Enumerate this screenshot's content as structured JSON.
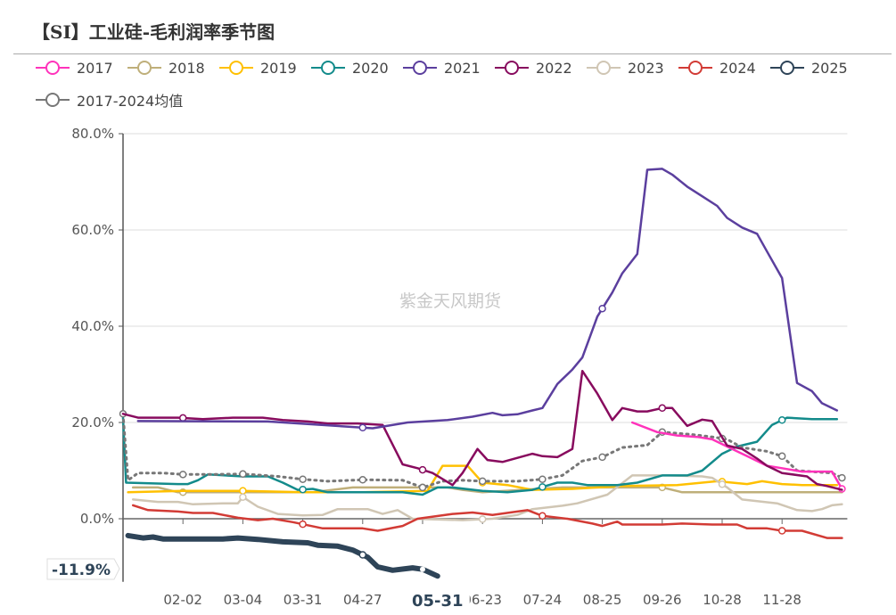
{
  "chart_data": {
    "type": "line",
    "title": "【SI】工业硅-毛利润率季节图",
    "watermark": "紫金天风期货",
    "x_range": [
      0,
      72
    ],
    "x_ticks": [
      {
        "i": 6,
        "label": "02-02"
      },
      {
        "i": 12,
        "label": "03-04"
      },
      {
        "i": 18,
        "label": "03-31"
      },
      {
        "i": 24,
        "label": "04-27"
      },
      {
        "i": 36,
        "label": "06-23"
      },
      {
        "i": 42,
        "label": "07-24"
      },
      {
        "i": 48,
        "label": "08-25"
      },
      {
        "i": 54,
        "label": "09-26"
      },
      {
        "i": 60,
        "label": "10-28"
      },
      {
        "i": 66,
        "label": "11-28"
      }
    ],
    "ylim": [
      -13.1,
      80
    ],
    "y_ticks": [
      {
        "v": 0,
        "label": "0.0%"
      },
      {
        "v": 20,
        "label": "20.0%"
      },
      {
        "v": 40,
        "label": "40.0%"
      },
      {
        "v": 60,
        "label": "60.0%"
      },
      {
        "v": 80,
        "label": "80.0%"
      }
    ],
    "grid": true,
    "legend_placement": "top",
    "pointer": {
      "x_label": "05-31",
      "x_i": 31.5,
      "y_label": "-11.9%",
      "y_value": -11.9
    },
    "series": [
      {
        "name": "2017",
        "color": "#FF33BB",
        "points": [
          [
            51,
            20.0
          ],
          [
            53.5,
            18
          ],
          [
            55.5,
            17.3
          ],
          [
            57.5,
            17
          ],
          [
            59,
            16.5
          ],
          [
            60.5,
            15
          ],
          [
            62.5,
            13
          ],
          [
            64.5,
            11
          ],
          [
            66,
            10.5
          ],
          [
            68,
            9.8
          ],
          [
            71,
            9.8
          ],
          [
            72,
            6.2
          ]
        ]
      },
      {
        "name": "2018",
        "color": "#BFAF7A",
        "points": [
          [
            1,
            6.5
          ],
          [
            3.5,
            6.5
          ],
          [
            5.5,
            5.5
          ],
          [
            19,
            5.5
          ],
          [
            23,
            6.5
          ],
          [
            32.5,
            6.5
          ],
          [
            34,
            6
          ],
          [
            36,
            5.5
          ],
          [
            44,
            6.5
          ],
          [
            48.5,
            6.5
          ],
          [
            54,
            6.5
          ],
          [
            56,
            5.5
          ],
          [
            72,
            5.5
          ]
        ]
      },
      {
        "name": "2019",
        "color": "#FFC000",
        "points": [
          [
            0.5,
            5.5
          ],
          [
            6,
            5.8
          ],
          [
            12,
            5.8
          ],
          [
            18,
            5.5
          ],
          [
            24,
            5.5
          ],
          [
            30.5,
            5.8
          ],
          [
            32,
            11
          ],
          [
            34.5,
            11
          ],
          [
            36,
            7.5
          ],
          [
            38.5,
            7
          ],
          [
            41,
            6
          ],
          [
            45,
            6.2
          ],
          [
            50,
            6.8
          ],
          [
            55.5,
            7
          ],
          [
            59.5,
            7.8
          ],
          [
            62.5,
            7.2
          ],
          [
            64,
            7.8
          ],
          [
            66,
            7.2
          ],
          [
            68,
            7
          ],
          [
            71.5,
            7
          ]
        ]
      },
      {
        "name": "2020",
        "color": "#138B8B",
        "points": [
          [
            0,
            21
          ],
          [
            0.3,
            7.5
          ],
          [
            5.5,
            7.2
          ],
          [
            6.5,
            7.2
          ],
          [
            7.5,
            8
          ],
          [
            8.5,
            9.2
          ],
          [
            12,
            8.8
          ],
          [
            14.5,
            8.8
          ],
          [
            16,
            7.5
          ],
          [
            17.5,
            6
          ],
          [
            19,
            6.2
          ],
          [
            20.5,
            5.5
          ],
          [
            23.5,
            5.5
          ],
          [
            28,
            5.5
          ],
          [
            30,
            5
          ],
          [
            31.5,
            6.5
          ],
          [
            33,
            6.5
          ],
          [
            36,
            5.8
          ],
          [
            38.5,
            5.5
          ],
          [
            41,
            6
          ],
          [
            43.5,
            7.5
          ],
          [
            45,
            7.5
          ],
          [
            46.5,
            7
          ],
          [
            49.5,
            7
          ],
          [
            51.5,
            7.5
          ],
          [
            54,
            9
          ],
          [
            56.5,
            9
          ],
          [
            58,
            10
          ],
          [
            60,
            13.5
          ],
          [
            61.5,
            15
          ],
          [
            63.5,
            16
          ],
          [
            65,
            19.5
          ],
          [
            66.5,
            21
          ],
          [
            69,
            20.7
          ],
          [
            71.5,
            20.7
          ]
        ]
      },
      {
        "name": "2021",
        "color": "#5B3F9E",
        "points": [
          [
            1.5,
            20.3
          ],
          [
            14.5,
            20.2
          ],
          [
            25,
            18.8
          ],
          [
            28.5,
            20
          ],
          [
            32.5,
            20.5
          ],
          [
            35,
            21.2
          ],
          [
            37,
            22
          ],
          [
            38,
            21.5
          ],
          [
            39.5,
            21.7
          ],
          [
            41,
            22.5
          ],
          [
            42,
            23
          ],
          [
            43.5,
            28
          ],
          [
            45,
            31
          ],
          [
            46,
            33.5
          ],
          [
            47.5,
            42
          ],
          [
            49,
            47
          ],
          [
            50,
            51
          ],
          [
            51.5,
            55
          ],
          [
            52.5,
            72.5
          ],
          [
            54,
            72.7
          ],
          [
            55,
            71.5
          ],
          [
            56.5,
            69
          ],
          [
            58,
            67
          ],
          [
            59.5,
            65
          ],
          [
            60.5,
            62.5
          ],
          [
            62,
            60.5
          ],
          [
            63.5,
            59.2
          ],
          [
            64.5,
            55.5
          ],
          [
            66,
            50
          ],
          [
            67.5,
            28.2
          ],
          [
            69,
            26.5
          ],
          [
            70,
            24
          ],
          [
            71.5,
            22.5
          ]
        ]
      },
      {
        "name": "2022",
        "color": "#880B5E",
        "points": [
          [
            0,
            21.8
          ],
          [
            1.5,
            21
          ],
          [
            5.5,
            21
          ],
          [
            8,
            20.7
          ],
          [
            11,
            21
          ],
          [
            14,
            21
          ],
          [
            16,
            20.5
          ],
          [
            18.5,
            20.2
          ],
          [
            20.5,
            19.8
          ],
          [
            23.5,
            19.8
          ],
          [
            26,
            19.5
          ],
          [
            28,
            11.3
          ],
          [
            29.5,
            10.5
          ],
          [
            31,
            9.5
          ],
          [
            33,
            7
          ],
          [
            34,
            9.5
          ],
          [
            35.5,
            14.5
          ],
          [
            36.5,
            12.2
          ],
          [
            38,
            11.8
          ],
          [
            41,
            13.5
          ],
          [
            42,
            13
          ],
          [
            43.5,
            12.8
          ],
          [
            45,
            14.5
          ],
          [
            46,
            30.7
          ],
          [
            47.5,
            26
          ],
          [
            49,
            20.5
          ],
          [
            50,
            23
          ],
          [
            51.5,
            22.3
          ],
          [
            52.5,
            22.3
          ],
          [
            54,
            23
          ],
          [
            55,
            23
          ],
          [
            56.5,
            19.3
          ],
          [
            58,
            20.6
          ],
          [
            59,
            20.3
          ],
          [
            60.5,
            15.2
          ],
          [
            62,
            14.5
          ],
          [
            63.5,
            12.5
          ],
          [
            64.5,
            11
          ],
          [
            66,
            9.5
          ],
          [
            68.5,
            8.8
          ],
          [
            69.5,
            7.2
          ],
          [
            70.5,
            6.8
          ],
          [
            72,
            6
          ]
        ]
      },
      {
        "name": "2023",
        "color": "#D0C6B4",
        "points": [
          [
            1,
            4
          ],
          [
            3.5,
            3.5
          ],
          [
            5.5,
            3.5
          ],
          [
            7,
            3
          ],
          [
            10,
            3.2
          ],
          [
            11.5,
            3.2
          ],
          [
            12,
            4.5
          ],
          [
            13.5,
            2.5
          ],
          [
            15.5,
            1
          ],
          [
            18,
            0.7
          ],
          [
            20,
            0.8
          ],
          [
            21.5,
            2
          ],
          [
            24.5,
            2
          ],
          [
            26,
            1
          ],
          [
            27.5,
            1.8
          ],
          [
            29,
            0
          ],
          [
            34,
            -0.3
          ],
          [
            37,
            0
          ],
          [
            39.5,
            0.8
          ],
          [
            41,
            2
          ],
          [
            44,
            2.7
          ],
          [
            45.5,
            3.2
          ],
          [
            48.5,
            5
          ],
          [
            51,
            9
          ],
          [
            54.5,
            9
          ],
          [
            58,
            8.8
          ],
          [
            59,
            8.5
          ],
          [
            60.5,
            6.5
          ],
          [
            62,
            4
          ],
          [
            65.5,
            3.2
          ],
          [
            67.5,
            1.8
          ],
          [
            69,
            1.6
          ],
          [
            70,
            2
          ],
          [
            71,
            2.8
          ],
          [
            72,
            3
          ]
        ]
      },
      {
        "name": "2024",
        "color": "#D23B35",
        "points": [
          [
            1,
            2.8
          ],
          [
            2.5,
            1.8
          ],
          [
            5.5,
            1.5
          ],
          [
            7,
            1.2
          ],
          [
            9,
            1.2
          ],
          [
            11.5,
            0.2
          ],
          [
            13.5,
            -0.3
          ],
          [
            15,
            0
          ],
          [
            17,
            -0.7
          ],
          [
            20,
            -2
          ],
          [
            23,
            -2
          ],
          [
            24,
            -2
          ],
          [
            25.5,
            -2.5
          ],
          [
            28,
            -1.5
          ],
          [
            29.5,
            0
          ],
          [
            33,
            1
          ],
          [
            35,
            1.3
          ],
          [
            37,
            0.8
          ],
          [
            39.5,
            1.5
          ],
          [
            40.5,
            1.8
          ],
          [
            42,
            0.6
          ],
          [
            44.5,
            0
          ],
          [
            47,
            -1
          ],
          [
            48,
            -1.5
          ],
          [
            49.5,
            -0.6
          ],
          [
            50,
            -1.2
          ],
          [
            54,
            -1.2
          ],
          [
            56,
            -1
          ],
          [
            59,
            -1.2
          ],
          [
            61.5,
            -1.2
          ],
          [
            62.5,
            -2
          ],
          [
            64.5,
            -2
          ],
          [
            66,
            -2.5
          ],
          [
            68,
            -2.5
          ],
          [
            70.5,
            -4
          ],
          [
            72,
            -4
          ]
        ]
      },
      {
        "name": "2025",
        "color": "#2E4458",
        "points": [
          [
            0.5,
            -3.5
          ],
          [
            2,
            -4
          ],
          [
            3,
            -3.8
          ],
          [
            4,
            -4.2
          ],
          [
            10,
            -4.2
          ],
          [
            11.5,
            -4
          ],
          [
            13.5,
            -4.3
          ],
          [
            16,
            -4.8
          ],
          [
            18.5,
            -5
          ],
          [
            19.5,
            -5.5
          ],
          [
            21.5,
            -5.7
          ],
          [
            23,
            -6.5
          ],
          [
            24.5,
            -8
          ],
          [
            25.5,
            -10
          ],
          [
            27,
            -10.7
          ],
          [
            29,
            -10.2
          ],
          [
            30,
            -10.5
          ],
          [
            31.5,
            -11.9
          ]
        ]
      },
      {
        "name": "2017-2024均值",
        "color": "#777777",
        "dashed": true,
        "points": [
          [
            0,
            21.8
          ],
          [
            0.5,
            8
          ],
          [
            1.5,
            9.5
          ],
          [
            4,
            9.5
          ],
          [
            6,
            9.2
          ],
          [
            9,
            9.2
          ],
          [
            12,
            9.3
          ],
          [
            15.5,
            8.8
          ],
          [
            18,
            8.2
          ],
          [
            20.5,
            7.8
          ],
          [
            24,
            8.1
          ],
          [
            28,
            8
          ],
          [
            30,
            6.5
          ],
          [
            32,
            7.8
          ],
          [
            34,
            8
          ],
          [
            36,
            7.8
          ],
          [
            39.5,
            7.8
          ],
          [
            42,
            8.2
          ],
          [
            44,
            9
          ],
          [
            46,
            12
          ],
          [
            48,
            12.8
          ],
          [
            50,
            14.8
          ],
          [
            52.5,
            15.3
          ],
          [
            54,
            18
          ],
          [
            57,
            17.5
          ],
          [
            59,
            17
          ],
          [
            60.5,
            16.5
          ],
          [
            62,
            14.8
          ],
          [
            64.5,
            14
          ],
          [
            66,
            13
          ],
          [
            67.5,
            10
          ],
          [
            71,
            9.5
          ],
          [
            72,
            8.5
          ]
        ]
      }
    ]
  }
}
